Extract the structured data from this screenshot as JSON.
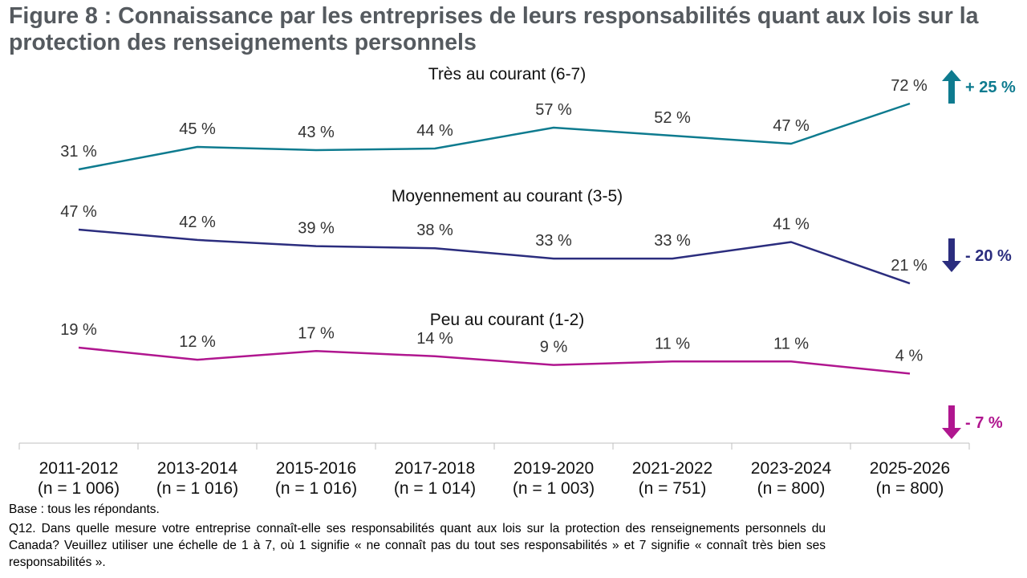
{
  "title": "Figure 8 : Connaissance par les entreprises de leurs responsabilités quant aux lois sur la protection des renseignements personnels",
  "colors": {
    "tres": "#0e7b8f",
    "moyen": "#2b2d7e",
    "peu": "#b0168f",
    "axis": "#bfbfbf",
    "text": "#222222"
  },
  "chart_data": {
    "type": "line",
    "categories": [
      [
        "2011-2012",
        "(n = 1 006)"
      ],
      [
        "2013-2014",
        "(n = 1 016)"
      ],
      [
        "2015-2016",
        "(n = 1 016)"
      ],
      [
        "2017-2018",
        "(n = 1 014)"
      ],
      [
        "2019-2020",
        "(n = 1 003)"
      ],
      [
        "2021-2022",
        "(n = 751)"
      ],
      [
        "2023-2024",
        "(n = 800)"
      ],
      [
        "2025-2026",
        "(n = 800)"
      ]
    ],
    "series": [
      {
        "key": "tres",
        "name": "Très au courant (6-7)",
        "values": [
          31,
          45,
          43,
          44,
          57,
          52,
          47,
          72
        ],
        "labels": [
          "31 %",
          "45 %",
          "43 %",
          "44 %",
          "57 %",
          "52 %",
          "47 %",
          "72 %"
        ],
        "change": "+ 25 %",
        "direction": "up"
      },
      {
        "key": "moyen",
        "name": "Moyennement au courant (3-5)",
        "values": [
          47,
          42,
          39,
          38,
          33,
          33,
          41,
          21
        ],
        "labels": [
          "47 %",
          "42 %",
          "39 %",
          "38 %",
          "33 %",
          "33 %",
          "41 %",
          "21 %"
        ],
        "change": "- 20 %",
        "direction": "down"
      },
      {
        "key": "peu",
        "name": "Peu au courant (1-2)",
        "values": [
          19,
          12,
          17,
          14,
          9,
          11,
          11,
          4
        ],
        "labels": [
          "19 %",
          "12 %",
          "17 %",
          "14 %",
          "9 %",
          "11 %",
          "11 %",
          "4 %"
        ],
        "change": "- 7 %",
        "direction": "down"
      }
    ]
  },
  "footer": {
    "base": "Base : tous les répondants.",
    "question": "Q12. Dans quelle mesure votre entreprise connaît-elle ses responsabilités quant aux lois sur la protection des renseignements personnels du Canada? Veuillez utiliser une échelle de 1 à 7, où 1 signifie « ne connaît pas du tout ses responsabilités » et 7 signifie « connaît très bien ses responsabilités »."
  }
}
